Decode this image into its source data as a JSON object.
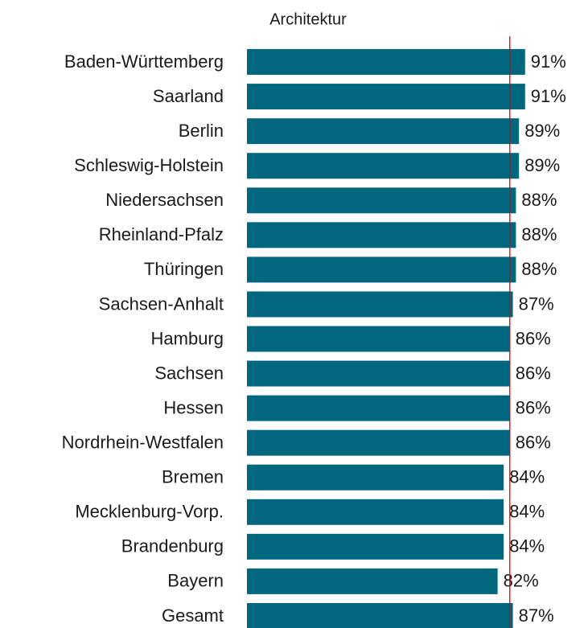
{
  "chart_data": {
    "type": "bar",
    "orientation": "horizontal",
    "title": "Architektur",
    "categories": [
      "Baden-Württemberg",
      "Saarland",
      "Berlin",
      "Schleswig-Holstein",
      "Niedersachsen",
      "Rheinland-Pfalz",
      "Thüringen",
      "Sachsen-Anhalt",
      "Hamburg",
      "Sachsen",
      "Hessen",
      "Nordrhein-Westfalen",
      "Bremen",
      "Mecklenburg-Vorp.",
      "Brandenburg",
      "Bayern",
      "Gesamt"
    ],
    "values": [
      91,
      91,
      89,
      89,
      88,
      88,
      88,
      87,
      86,
      86,
      86,
      86,
      84,
      84,
      84,
      82,
      87
    ],
    "value_labels": [
      "91%",
      "91%",
      "89%",
      "89%",
      "88%",
      "88%",
      "88%",
      "87%",
      "86%",
      "86%",
      "86%",
      "86%",
      "84%",
      "84%",
      "84%",
      "82%",
      "87%"
    ],
    "color": "#00677f",
    "xlim": [
      0,
      100
    ],
    "reference_line": 86,
    "reference_color": "#e00000"
  }
}
